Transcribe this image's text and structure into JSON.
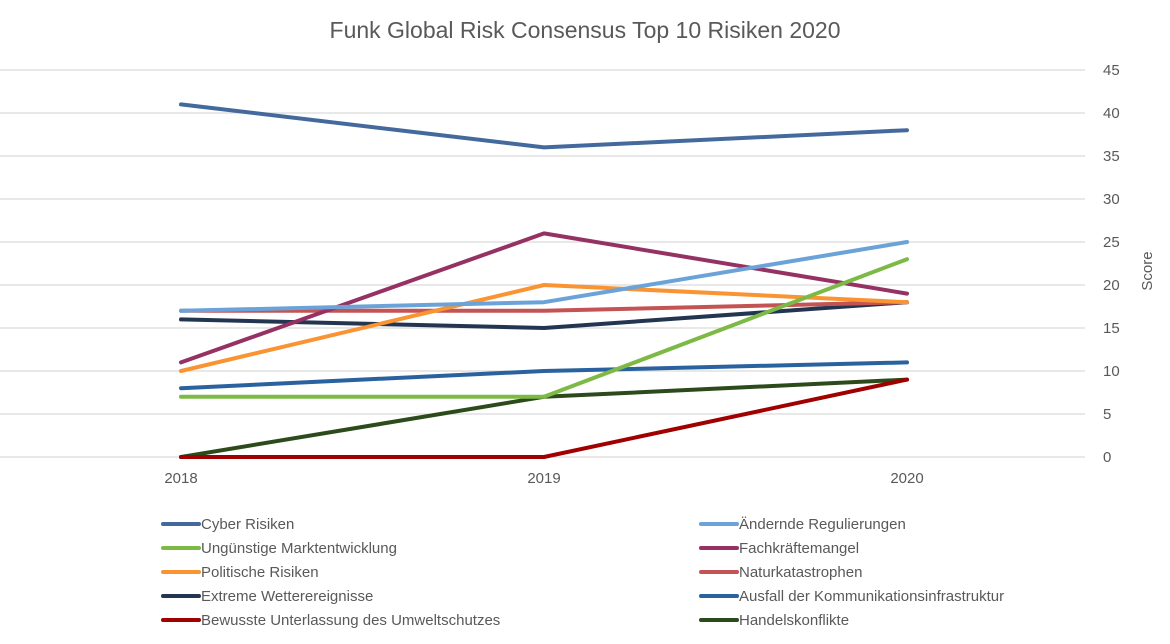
{
  "chart_data": {
    "type": "line",
    "title": "Funk Global Risk Consensus Top 10 Risiken 2020",
    "xlabel": "",
    "ylabel": "Score",
    "ylim": [
      0,
      45
    ],
    "yticks": [
      "0",
      "5",
      "10",
      "15",
      "20",
      "25",
      "30",
      "35",
      "40",
      "45"
    ],
    "categories": [
      "2018",
      "2019",
      "2020"
    ],
    "grid": true,
    "legend_position": "bottom",
    "series": [
      {
        "name": "Cyber Risiken",
        "color": "#44699C",
        "values": [
          41,
          36,
          38
        ]
      },
      {
        "name": "Ändernde Regulierungen",
        "color": "#6BA3D8",
        "values": [
          17,
          18,
          25
        ]
      },
      {
        "name": "Ungünstige Marktentwicklung",
        "color": "#7DBA45",
        "values": [
          7,
          7,
          23
        ]
      },
      {
        "name": "Fachkräftemangel",
        "color": "#953263",
        "values": [
          11,
          26,
          19
        ]
      },
      {
        "name": "Politische Risiken",
        "color": "#FA9433",
        "values": [
          10,
          20,
          18
        ]
      },
      {
        "name": "Naturkatastrophen",
        "color": "#C45454",
        "values": [
          17,
          17,
          18
        ]
      },
      {
        "name": "Extreme Wetterereignisse",
        "color": "#233550",
        "values": [
          16,
          15,
          18
        ]
      },
      {
        "name": "Ausfall der Kommunikationsinfrastruktur",
        "color": "#2A62A0",
        "values": [
          8,
          10,
          11
        ]
      },
      {
        "name": "Bewusste Unterlassung des Umweltschutzes",
        "color": "#A00000",
        "values": [
          0,
          0,
          9
        ]
      },
      {
        "name": "Handelskonflikte",
        "color": "#2C4A1A",
        "values": [
          0,
          7,
          9
        ]
      }
    ]
  }
}
